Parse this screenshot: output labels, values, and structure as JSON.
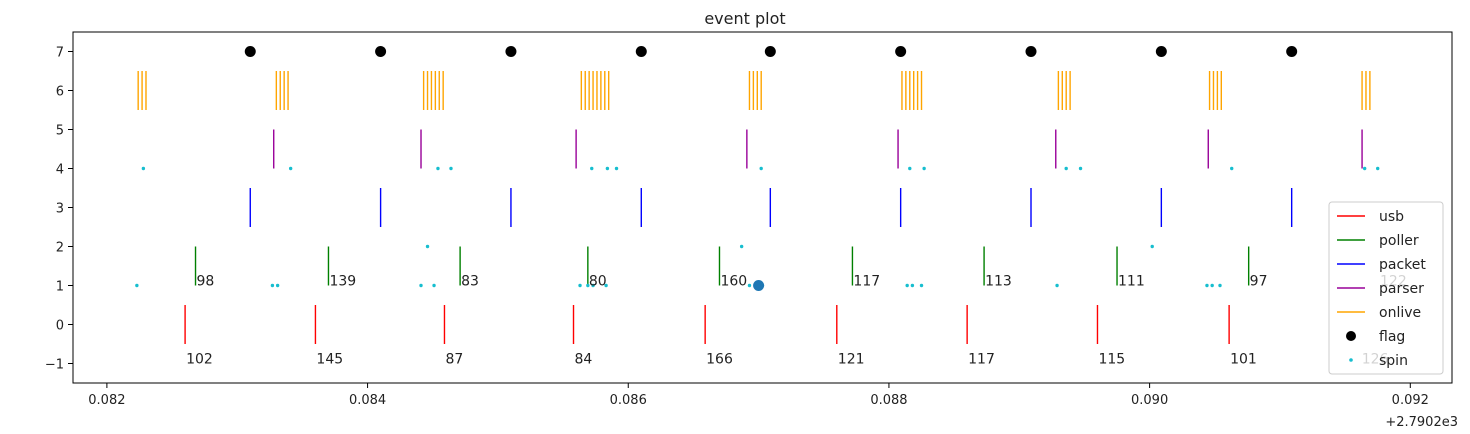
{
  "chart_data": {
    "type": "eventplot",
    "title": "event plot",
    "xlabel": "",
    "ylabel": "",
    "x_offset_label": "+2.7902e3",
    "xlim": [
      0.08174,
      0.09232
    ],
    "ylim": [
      -1.5,
      7.5
    ],
    "x_ticks": [
      0.082,
      0.084,
      0.086,
      0.088,
      0.09,
      0.092
    ],
    "x_tick_labels": [
      "0.082",
      "0.084",
      "0.086",
      "0.088",
      "0.090",
      "0.092"
    ],
    "y_ticks": [
      -1,
      0,
      1,
      2,
      3,
      4,
      5,
      6,
      7
    ],
    "y_tick_labels": [
      "−1",
      "0",
      "1",
      "2",
      "3",
      "4",
      "5",
      "6",
      "7"
    ],
    "legend_position": "lower-right",
    "series": [
      {
        "name": "usb",
        "kind": "event",
        "color": "#ff0000",
        "y_low": -0.5,
        "y_high": 0.5,
        "x": [
          0.0826,
          0.0836,
          0.08459,
          0.08558,
          0.08659,
          0.0876,
          0.0886,
          0.0896,
          0.09061
        ]
      },
      {
        "name": "poller",
        "kind": "event",
        "color": "#008000",
        "y_low": 1.0,
        "y_high": 2.0,
        "x": [
          0.08268,
          0.0837,
          0.08471,
          0.08569,
          0.0867,
          0.08772,
          0.08873,
          0.08975,
          0.09076
        ]
      },
      {
        "name": "packet",
        "kind": "event",
        "color": "#0000ff",
        "y_low": 2.5,
        "y_high": 3.5,
        "x": [
          0.0831,
          0.0841,
          0.0851,
          0.0861,
          0.08709,
          0.08809,
          0.08909,
          0.09009,
          0.09109
        ]
      },
      {
        "name": "parser",
        "kind": "event",
        "color": "#990099",
        "y_low": 4.0,
        "y_high": 5.0,
        "x": [
          0.08328,
          0.08441,
          0.0856,
          0.08691,
          0.08807,
          0.08928,
          0.09045,
          0.09163
        ]
      },
      {
        "name": "onlive",
        "kind": "event",
        "color": "#ffa500",
        "y_low": 5.5,
        "y_high": 6.5,
        "x": [
          0.08224,
          0.08227,
          0.0823,
          0.0833,
          0.08333,
          0.08336,
          0.08339,
          0.08443,
          0.08446,
          0.08449,
          0.08452,
          0.08455,
          0.08458,
          0.08564,
          0.08567,
          0.0857,
          0.08573,
          0.08576,
          0.08579,
          0.08582,
          0.08585,
          0.08693,
          0.08696,
          0.08699,
          0.08702,
          0.0881,
          0.08813,
          0.08816,
          0.08819,
          0.08822,
          0.08825,
          0.0893,
          0.08933,
          0.08936,
          0.08939,
          0.09046,
          0.09049,
          0.09052,
          0.09055,
          0.09163,
          0.09166,
          0.09169
        ]
      },
      {
        "name": "flag",
        "kind": "marker",
        "color": "#000000",
        "y": 7,
        "x": [
          0.0831,
          0.0841,
          0.0851,
          0.0861,
          0.08709,
          0.08809,
          0.08909,
          0.09009,
          0.09109
        ]
      },
      {
        "name": "spin",
        "kind": "dot",
        "color": "#17becf",
        "points": [
          [
            0.08228,
            4
          ],
          [
            0.08341,
            4
          ],
          [
            0.08454,
            4
          ],
          [
            0.08464,
            4
          ],
          [
            0.08572,
            4
          ],
          [
            0.08584,
            4
          ],
          [
            0.08591,
            4
          ],
          [
            0.08702,
            4
          ],
          [
            0.08816,
            4
          ],
          [
            0.08827,
            4
          ],
          [
            0.08936,
            4
          ],
          [
            0.08947,
            4
          ],
          [
            0.09063,
            4
          ],
          [
            0.09165,
            4
          ],
          [
            0.09175,
            4
          ],
          [
            0.08223,
            1
          ],
          [
            0.08327,
            1
          ],
          [
            0.08331,
            1
          ],
          [
            0.08441,
            1
          ],
          [
            0.08451,
            1
          ],
          [
            0.08563,
            1
          ],
          [
            0.08569,
            1
          ],
          [
            0.08573,
            1
          ],
          [
            0.08583,
            1
          ],
          [
            0.08693,
            1
          ],
          [
            0.08703,
            1
          ],
          [
            0.08814,
            1
          ],
          [
            0.08818,
            1
          ],
          [
            0.08825,
            1
          ],
          [
            0.08929,
            1
          ],
          [
            0.09044,
            1
          ],
          [
            0.09048,
            1
          ],
          [
            0.09054,
            1
          ],
          [
            0.08446,
            2
          ],
          [
            0.08687,
            2
          ],
          [
            0.09002,
            2
          ]
        ]
      }
    ],
    "highlight_point": {
      "x": 0.087,
      "y": 1,
      "color": "#1f77b4"
    },
    "annotations": [
      {
        "text": "102",
        "x": 0.0826,
        "y": -0.9
      },
      {
        "text": "145",
        "x": 0.0836,
        "y": -0.9
      },
      {
        "text": "87",
        "x": 0.08459,
        "y": -0.9
      },
      {
        "text": "84",
        "x": 0.08558,
        "y": -0.9
      },
      {
        "text": "166",
        "x": 0.08659,
        "y": -0.9
      },
      {
        "text": "121",
        "x": 0.0876,
        "y": -0.9
      },
      {
        "text": "117",
        "x": 0.0886,
        "y": -0.9
      },
      {
        "text": "115",
        "x": 0.0896,
        "y": -0.9
      },
      {
        "text": "101",
        "x": 0.09061,
        "y": -0.9
      },
      {
        "text": "126",
        "x": 0.09162,
        "y": -0.9
      },
      {
        "text": "98",
        "x": 0.08268,
        "y": 1.1
      },
      {
        "text": "139",
        "x": 0.0837,
        "y": 1.1
      },
      {
        "text": "83",
        "x": 0.08471,
        "y": 1.1
      },
      {
        "text": "80",
        "x": 0.08569,
        "y": 1.1
      },
      {
        "text": "160",
        "x": 0.0867,
        "y": 1.1
      },
      {
        "text": "117",
        "x": 0.08772,
        "y": 1.1
      },
      {
        "text": "113",
        "x": 0.08873,
        "y": 1.1
      },
      {
        "text": "111",
        "x": 0.08975,
        "y": 1.1
      },
      {
        "text": "97",
        "x": 0.09076,
        "y": 1.1
      },
      {
        "text": "122",
        "x": 0.09176,
        "y": 1.1
      }
    ]
  }
}
